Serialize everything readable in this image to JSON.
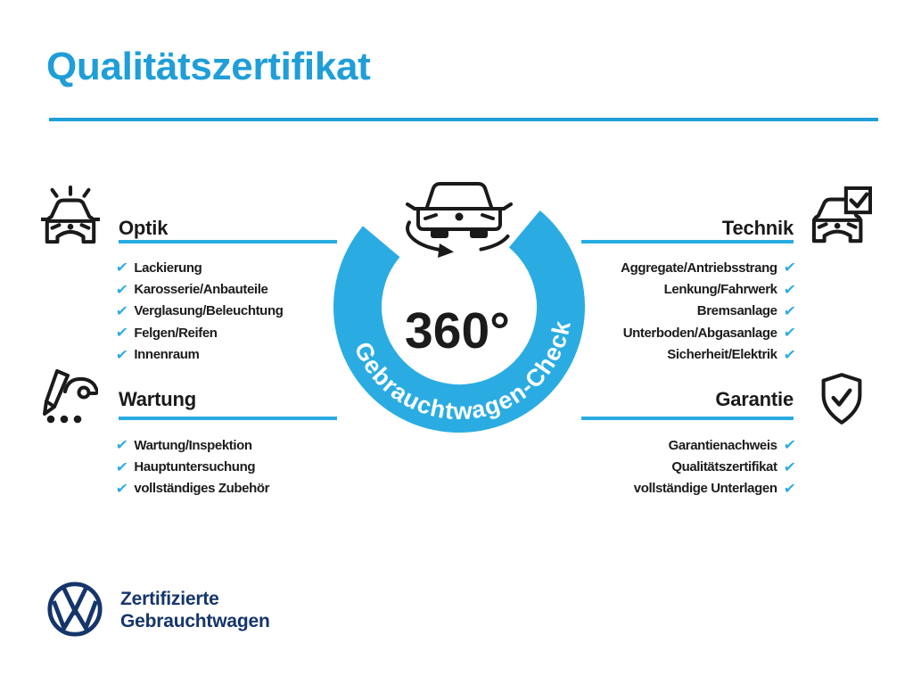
{
  "page": {
    "title": "Qualitätszertifikat"
  },
  "badge": {
    "degree": "360°",
    "ring_label": "Gebrauchtwagen-Check"
  },
  "check_icon": "✔",
  "sections": [
    {
      "id": "optik",
      "title": "Optik",
      "icon": "sparkling-car-icon",
      "side": "left",
      "items": [
        "Lackierung",
        "Karosserie/Anbauteile",
        "Verglasung/Beleuchtung",
        "Felgen/Reifen",
        "Innenraum"
      ]
    },
    {
      "id": "wartung",
      "title": "Wartung",
      "icon": "service-checklist-icon",
      "side": "left",
      "items": [
        "Wartung/Inspektion",
        "Hauptuntersuchung",
        "vollständiges Zubehör"
      ]
    },
    {
      "id": "technik",
      "title": "Technik",
      "icon": "car-checkbox-icon",
      "side": "right",
      "items": [
        "Aggregate/Antriebsstrang",
        "Lenkung/Fahrwerk",
        "Bremsanlage",
        "Unterboden/Abgasanlage",
        "Sicherheit/Elektrik"
      ]
    },
    {
      "id": "garantie",
      "title": "Garantie",
      "icon": "shield-check-icon",
      "side": "right",
      "items": [
        "Garantienachweis",
        "Qualitätszertifikat",
        "vollständige Unterlagen"
      ]
    }
  ],
  "footer": {
    "brand_line1": "Zertifizierte",
    "brand_line2": "Gebrauchtwagen",
    "logo": "vw-logo"
  },
  "colors": {
    "accent": "#1F9ED8",
    "ring": "#2AACE3",
    "navy": "#15356B",
    "text": "#1A1A1A"
  }
}
